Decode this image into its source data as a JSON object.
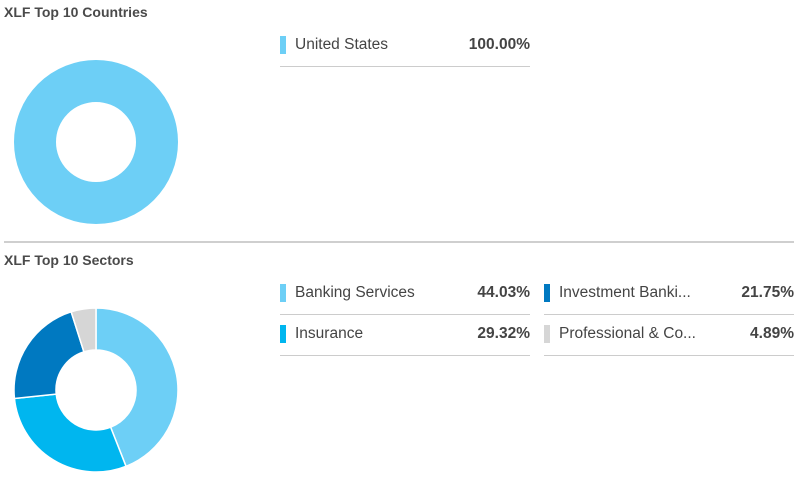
{
  "chart_data": [
    {
      "type": "pie",
      "title": "XLF Top 10 Countries",
      "categories": [
        "United States"
      ],
      "values": [
        100.0
      ],
      "value_labels": [
        "100.00%"
      ],
      "colors": [
        "#6dcff6"
      ],
      "donut": true
    },
    {
      "type": "pie",
      "title": "XLF Top 10 Sectors",
      "categories": [
        "Banking Services",
        "Insurance",
        "Investment Banki...",
        "Professional & Co..."
      ],
      "values": [
        44.03,
        29.32,
        21.75,
        4.89
      ],
      "value_labels": [
        "44.03%",
        "29.32%",
        "21.75%",
        "4.89%"
      ],
      "colors": [
        "#6dcff6",
        "#00b6ef",
        "#0079c1",
        "#d6d6d6"
      ],
      "donut": true
    }
  ]
}
